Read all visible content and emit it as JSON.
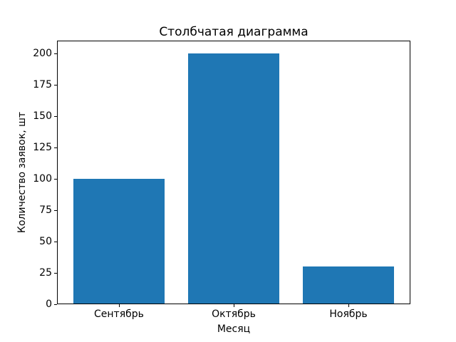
{
  "figure": {
    "background": "#ffffff"
  },
  "chart_data": {
    "type": "bar",
    "title": "Столбчатая диаграмма",
    "xlabel": "Месяц",
    "ylabel": "Количество заявок, шт",
    "categories": [
      "Сентябрь",
      "Октябрь",
      "Ноябрь"
    ],
    "values": [
      100,
      200,
      30
    ],
    "yticks": [
      0,
      25,
      50,
      75,
      100,
      125,
      150,
      175,
      200
    ],
    "ylim": [
      0,
      210
    ],
    "xlim": [
      -0.54,
      2.54
    ],
    "bar_width_fraction": 0.8,
    "bar_color": "#1f77b4",
    "axis_color": "#000000",
    "text_color": "#000000",
    "grid": false,
    "legend_position": "none"
  }
}
